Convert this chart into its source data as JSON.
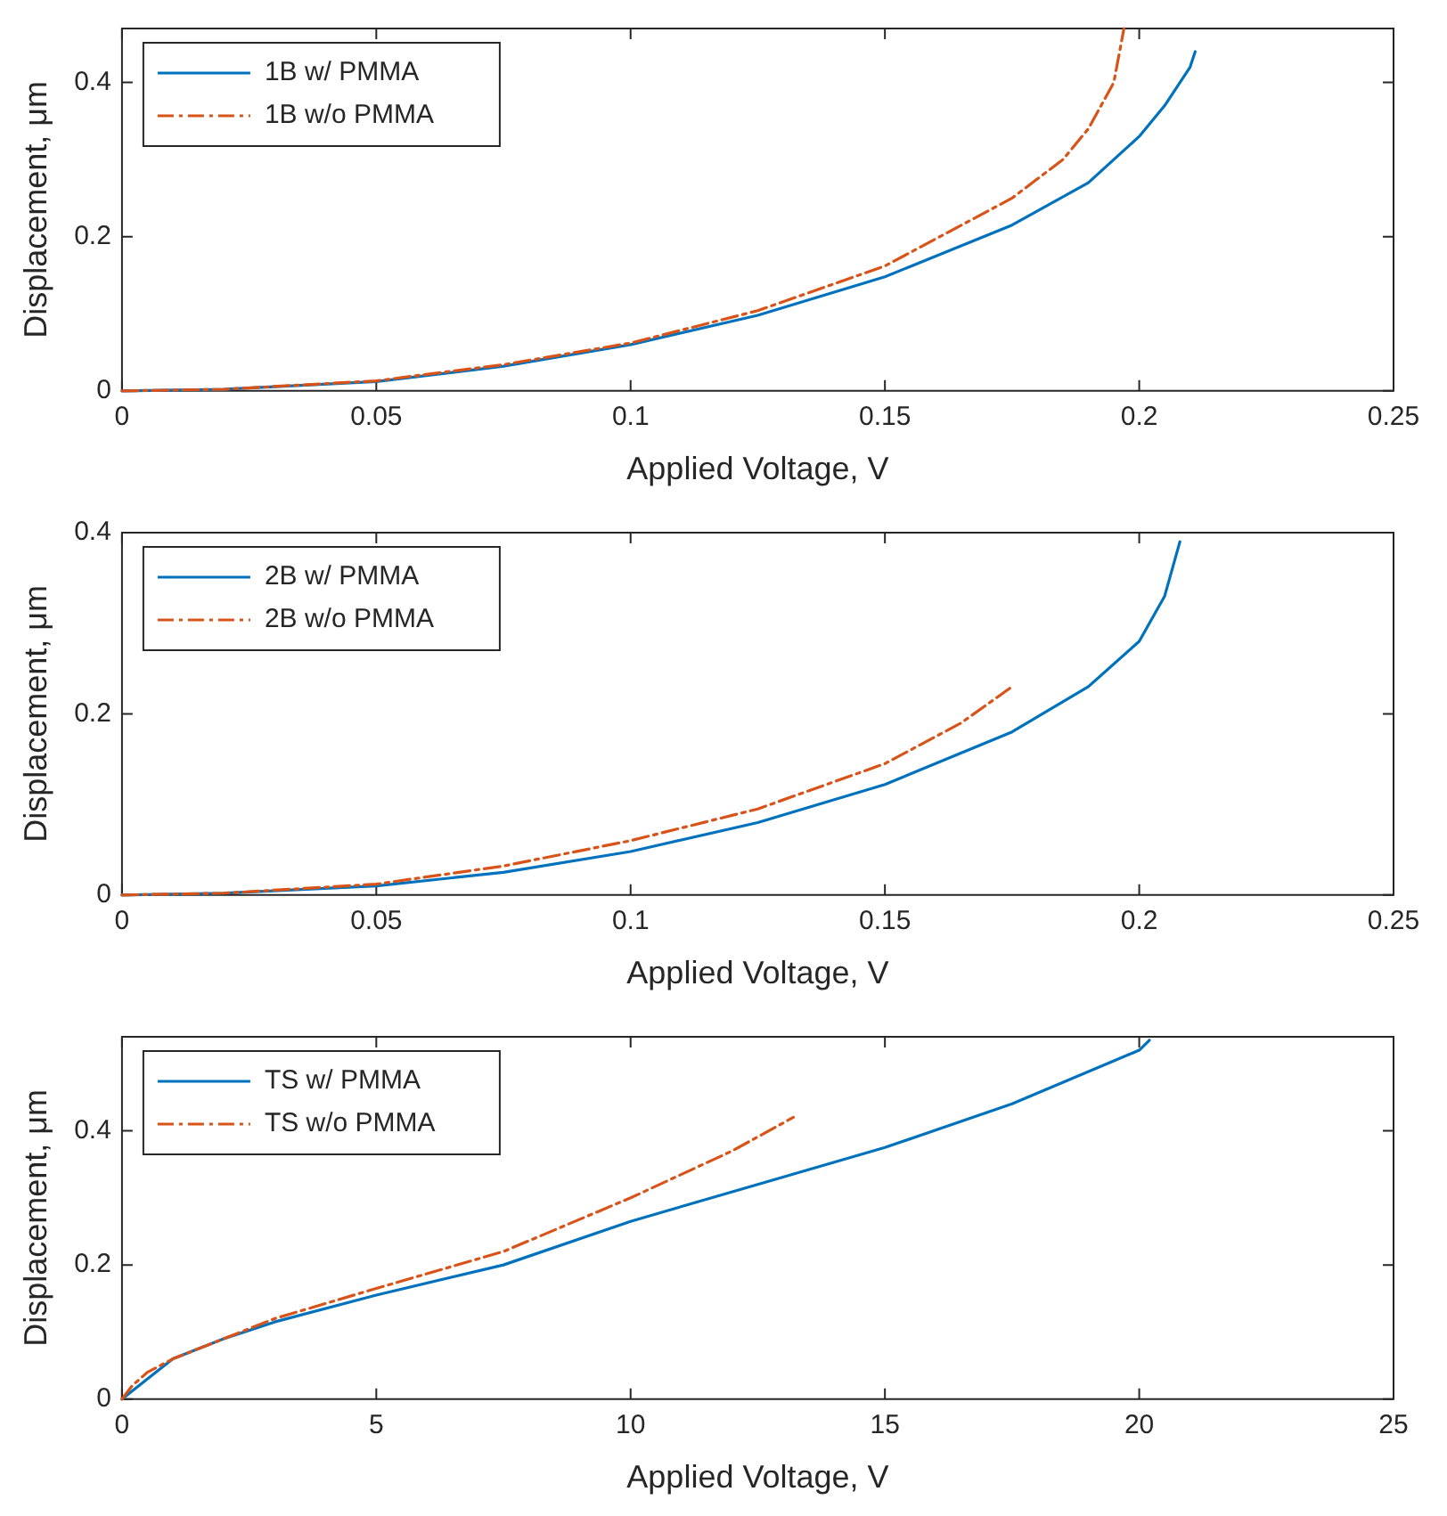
{
  "chart_data": [
    {
      "type": "line",
      "xlabel": "Applied Voltage, V",
      "ylabel": "Displacement, μm",
      "xlim": [
        0,
        0.25
      ],
      "xticks": [
        0,
        0.05,
        0.1,
        0.15,
        0.2,
        0.25
      ],
      "ylim": [
        0,
        0.47
      ],
      "yticks": [
        0,
        0.2,
        0.4
      ],
      "grid": false,
      "legend": "top left",
      "series": [
        {
          "name": "1B w/ PMMA",
          "color": "#0072bd",
          "line_style": "solid",
          "x": [
            0,
            0.02,
            0.05,
            0.075,
            0.1,
            0.125,
            0.15,
            0.175,
            0.19,
            0.2,
            0.205,
            0.21,
            0.211
          ],
          "values": [
            0,
            0.002,
            0.012,
            0.032,
            0.06,
            0.098,
            0.148,
            0.215,
            0.27,
            0.33,
            0.37,
            0.42,
            0.44
          ]
        },
        {
          "name": "1B w/o PMMA",
          "color": "#d95319",
          "line_style": "dashed",
          "x": [
            0,
            0.02,
            0.05,
            0.075,
            0.1,
            0.125,
            0.15,
            0.175,
            0.185,
            0.19,
            0.195,
            0.197
          ],
          "values": [
            0,
            0.002,
            0.013,
            0.034,
            0.062,
            0.104,
            0.162,
            0.25,
            0.3,
            0.34,
            0.4,
            0.47
          ]
        }
      ]
    },
    {
      "type": "line",
      "xlabel": "Applied Voltage, V",
      "ylabel": "Displacement, μm",
      "xlim": [
        0,
        0.25
      ],
      "xticks": [
        0,
        0.05,
        0.1,
        0.15,
        0.2,
        0.25
      ],
      "ylim": [
        0,
        0.4
      ],
      "yticks": [
        0,
        0.2,
        0.4
      ],
      "grid": false,
      "legend": "top left",
      "series": [
        {
          "name": "2B w/ PMMA",
          "color": "#0072bd",
          "line_style": "solid",
          "x": [
            0,
            0.02,
            0.05,
            0.075,
            0.1,
            0.125,
            0.15,
            0.175,
            0.19,
            0.2,
            0.205,
            0.208
          ],
          "values": [
            0,
            0.002,
            0.01,
            0.025,
            0.048,
            0.08,
            0.122,
            0.18,
            0.23,
            0.28,
            0.33,
            0.39
          ]
        },
        {
          "name": "2B w/o PMMA",
          "color": "#d95319",
          "line_style": "dashed",
          "x": [
            0,
            0.02,
            0.05,
            0.075,
            0.1,
            0.125,
            0.15,
            0.165,
            0.175
          ],
          "values": [
            0,
            0.002,
            0.012,
            0.032,
            0.06,
            0.095,
            0.145,
            0.19,
            0.23
          ]
        }
      ]
    },
    {
      "type": "line",
      "xlabel": "Applied Voltage, V",
      "ylabel": "Displacement, μm",
      "xlim": [
        0,
        25
      ],
      "xticks": [
        0,
        5,
        10,
        15,
        20,
        25
      ],
      "ylim": [
        0,
        0.54
      ],
      "yticks": [
        0,
        0.2,
        0.4
      ],
      "grid": false,
      "legend": "top left",
      "series": [
        {
          "name": "TS w/ PMMA",
          "color": "#0072bd",
          "line_style": "solid",
          "x": [
            0,
            1,
            2,
            3,
            5,
            7.5,
            10,
            12.5,
            15,
            17.5,
            20,
            20.2
          ],
          "values": [
            0,
            0.06,
            0.09,
            0.115,
            0.155,
            0.2,
            0.265,
            0.32,
            0.375,
            0.44,
            0.52,
            0.535
          ]
        },
        {
          "name": "TS w/o PMMA",
          "color": "#d95319",
          "line_style": "dashed",
          "x": [
            0,
            0.2,
            0.5,
            1,
            2,
            3,
            5,
            7.5,
            10,
            12,
            13.2
          ],
          "values": [
            0,
            0.02,
            0.04,
            0.06,
            0.09,
            0.12,
            0.165,
            0.22,
            0.3,
            0.37,
            0.42
          ]
        }
      ]
    }
  ]
}
